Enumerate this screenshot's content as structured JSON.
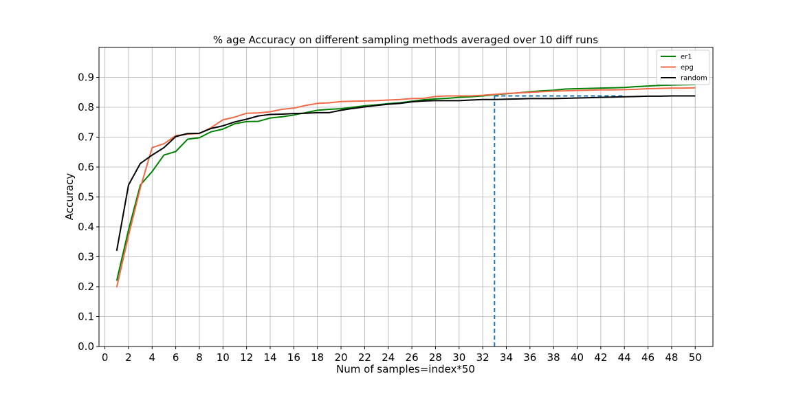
{
  "chart_data": {
    "type": "line",
    "title": "% age Accuracy on different sampling methods averaged over 10 diff runs",
    "xlabel": "Num of samples=index*50",
    "ylabel": "Accuracy",
    "xlim": [
      -0.5,
      51.5
    ],
    "ylim": [
      0.0,
      1.0
    ],
    "xticks": [
      0,
      2,
      4,
      6,
      8,
      10,
      12,
      14,
      16,
      18,
      20,
      22,
      24,
      26,
      28,
      30,
      32,
      34,
      36,
      38,
      40,
      42,
      44,
      46,
      48,
      50
    ],
    "yticks": [
      0.0,
      0.1,
      0.2,
      0.3,
      0.4,
      0.5,
      0.6,
      0.7,
      0.8,
      0.9
    ],
    "grid": true,
    "legend_position": "top-right",
    "x": [
      1,
      2,
      3,
      4,
      5,
      6,
      7,
      8,
      9,
      10,
      11,
      12,
      13,
      14,
      15,
      16,
      17,
      18,
      19,
      20,
      21,
      22,
      23,
      24,
      25,
      26,
      27,
      28,
      29,
      30,
      31,
      32,
      33,
      34,
      35,
      36,
      37,
      38,
      39,
      40,
      41,
      42,
      43,
      44,
      45,
      46,
      47,
      48,
      49,
      50
    ],
    "series": [
      {
        "name": "er1",
        "color": "#008000",
        "values": [
          0.22,
          0.39,
          0.54,
          0.585,
          0.64,
          0.652,
          0.693,
          0.698,
          0.718,
          0.727,
          0.745,
          0.752,
          0.753,
          0.764,
          0.768,
          0.774,
          0.782,
          0.79,
          0.793,
          0.795,
          0.8,
          0.805,
          0.808,
          0.812,
          0.815,
          0.82,
          0.825,
          0.828,
          0.83,
          0.833,
          0.835,
          0.838,
          0.842,
          0.845,
          0.848,
          0.852,
          0.855,
          0.857,
          0.861,
          0.862,
          0.863,
          0.864,
          0.865,
          0.866,
          0.869,
          0.871,
          0.873,
          0.874,
          0.875,
          0.876
        ]
      },
      {
        "name": "epg",
        "color": "#f06a48",
        "values": [
          0.198,
          0.37,
          0.53,
          0.665,
          0.678,
          0.705,
          0.71,
          0.712,
          0.732,
          0.758,
          0.767,
          0.78,
          0.781,
          0.785,
          0.793,
          0.797,
          0.806,
          0.813,
          0.815,
          0.819,
          0.82,
          0.821,
          0.822,
          0.824,
          0.826,
          0.829,
          0.83,
          0.836,
          0.838,
          0.838,
          0.838,
          0.84,
          0.843,
          0.846,
          0.848,
          0.85,
          0.852,
          0.854,
          0.855,
          0.856,
          0.857,
          0.858,
          0.858,
          0.859,
          0.86,
          0.862,
          0.863,
          0.864,
          0.864,
          0.865
        ]
      },
      {
        "name": "random",
        "color": "#000000",
        "values": [
          0.32,
          0.54,
          0.612,
          0.64,
          0.665,
          0.702,
          0.712,
          0.713,
          0.729,
          0.738,
          0.751,
          0.76,
          0.771,
          0.776,
          0.777,
          0.779,
          0.78,
          0.782,
          0.782,
          0.79,
          0.796,
          0.801,
          0.806,
          0.81,
          0.813,
          0.818,
          0.821,
          0.822,
          0.822,
          0.822,
          0.824,
          0.826,
          0.826,
          0.827,
          0.828,
          0.829,
          0.829,
          0.829,
          0.83,
          0.831,
          0.832,
          0.833,
          0.834,
          0.835,
          0.836,
          0.837,
          0.837,
          0.838,
          0.838,
          0.838
        ]
      }
    ],
    "annotations": [
      {
        "type": "vertical-dashed-line",
        "x": 33,
        "y_from": 0.0,
        "y_to": 0.838,
        "color": "#1f77b4"
      },
      {
        "type": "horizontal-dashed-line",
        "y": 0.838,
        "x_from": 33,
        "x_to": 44,
        "color": "#1f77b4"
      }
    ]
  }
}
